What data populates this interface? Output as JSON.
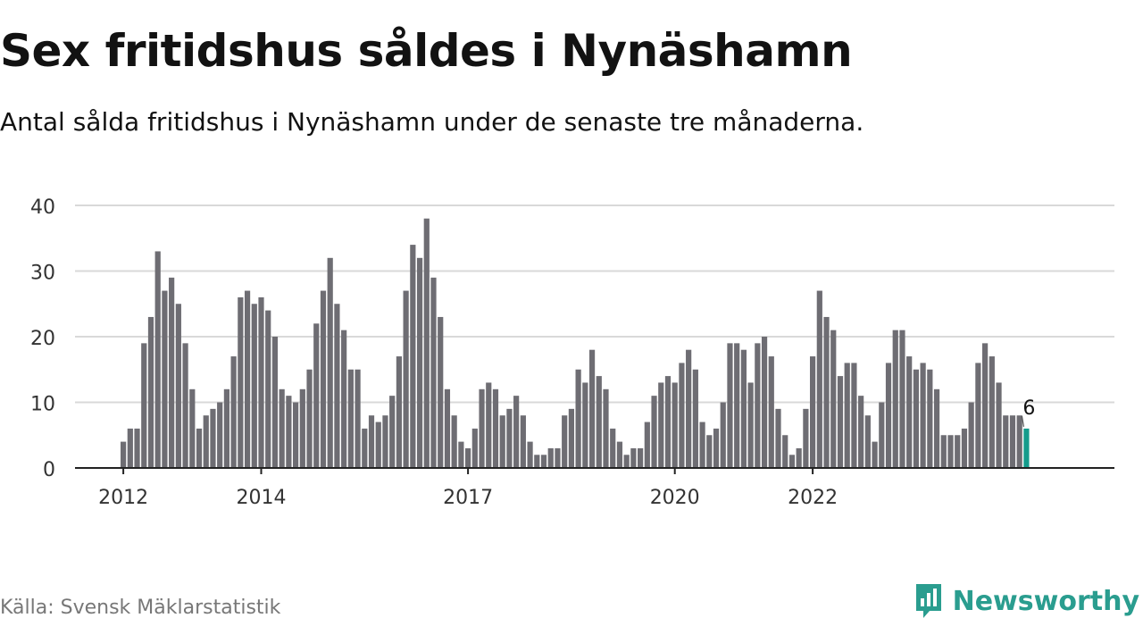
{
  "header": {
    "title": "Sex fritidshus såldes i Nynäshamn",
    "subtitle": "Antal sålda fritidshus i Nynäshamn under de senaste tre månaderna."
  },
  "footer": {
    "source": "Källa: Svensk Mäklarstatistik",
    "brand": "Newsworthy"
  },
  "colors": {
    "bar": "#6e6d73",
    "highlight": "#149c8c",
    "grid": "#d9d9d9",
    "axis": "#222222",
    "brand": "#2a9d8f"
  },
  "chart_data": {
    "type": "bar",
    "title": "Sex fritidshus såldes i Nynäshamn",
    "subtitle": "Antal sålda fritidshus i Nynäshamn under de senaste tre månaderna.",
    "xlabel": "",
    "ylabel": "",
    "ylim": [
      0,
      40
    ],
    "yticks": [
      0,
      10,
      20,
      30,
      40
    ],
    "grid": true,
    "legend": "none",
    "frequency": "monthly, rolling three-month total",
    "x_start": "2012-01",
    "xticks": [
      {
        "label": "2012",
        "month_index": 0
      },
      {
        "label": "2014",
        "month_index": 20
      },
      {
        "label": "2017",
        "month_index": 50
      },
      {
        "label": "2020",
        "month_index": 80
      },
      {
        "label": "2022",
        "month_index": 100
      }
    ],
    "values": [
      4,
      6,
      6,
      19,
      23,
      33,
      27,
      29,
      25,
      19,
      12,
      6,
      8,
      9,
      10,
      12,
      17,
      26,
      27,
      25,
      26,
      24,
      20,
      12,
      11,
      10,
      12,
      15,
      22,
      27,
      32,
      25,
      21,
      15,
      15,
      6,
      8,
      7,
      8,
      11,
      17,
      27,
      34,
      32,
      38,
      29,
      23,
      12,
      8,
      4,
      3,
      6,
      12,
      13,
      12,
      8,
      9,
      11,
      8,
      4,
      2,
      2,
      3,
      3,
      8,
      9,
      15,
      13,
      18,
      14,
      12,
      6,
      4,
      2,
      3,
      3,
      7,
      11,
      13,
      14,
      13,
      16,
      18,
      15,
      7,
      5,
      6,
      10,
      19,
      19,
      18,
      13,
      19,
      20,
      17,
      9,
      5,
      2,
      3,
      9,
      17,
      27,
      23,
      21,
      14,
      16,
      16,
      11,
      8,
      4,
      10,
      16,
      21,
      21,
      17,
      15,
      16,
      15,
      12,
      5,
      5,
      5,
      6,
      10,
      16,
      19,
      17,
      13,
      8,
      8,
      8,
      6
    ],
    "highlight_index": 131,
    "annotation": {
      "text": "6",
      "index": 131
    }
  }
}
